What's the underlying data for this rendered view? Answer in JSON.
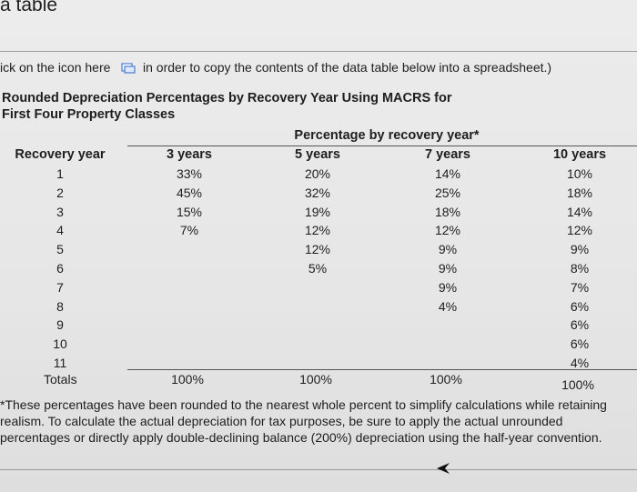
{
  "header": {
    "title": "a table"
  },
  "instruction": {
    "before_icon": "ick on the icon here",
    "after_icon": "in order to copy the contents of the data table below into a spreadsheet.)"
  },
  "table": {
    "title_lines": [
      "Rounded Depreciation Percentages by Recovery Year Using MACRS for",
      "First Four Property Classes"
    ],
    "group_header": "Percentage by recovery year*",
    "row_header": "Recovery year",
    "recovery_years": [
      "1",
      "2",
      "3",
      "4",
      "5",
      "6",
      "7",
      "8",
      "9",
      "10",
      "11"
    ],
    "columns": [
      {
        "name": "3 years",
        "values": [
          "33%",
          "45%",
          "15%",
          "7%"
        ],
        "total": "100%"
      },
      {
        "name": "5 years",
        "values": [
          "20%",
          "32%",
          "19%",
          "12%",
          "12%",
          "5%"
        ],
        "total": "100%"
      },
      {
        "name": "7 years",
        "values": [
          "14%",
          "25%",
          "18%",
          "12%",
          "9%",
          "9%",
          "9%",
          "4%"
        ],
        "total": "100%"
      },
      {
        "name": "10 years",
        "values": [
          "10%",
          "18%",
          "14%",
          "12%",
          "9%",
          "8%",
          "7%",
          "6%",
          "6%",
          "6%",
          "4%"
        ],
        "total": "100%"
      }
    ],
    "totals_label": "Totals"
  },
  "footnote": "These percentages have been rounded to the nearest whole percent to simplify calculations while retaining realism. To calculate the actual depreciation for tax purposes, be sure to apply the actual unrounded percentages or directly apply double-declining balance (200%) depreciation using the half-year convention."
}
